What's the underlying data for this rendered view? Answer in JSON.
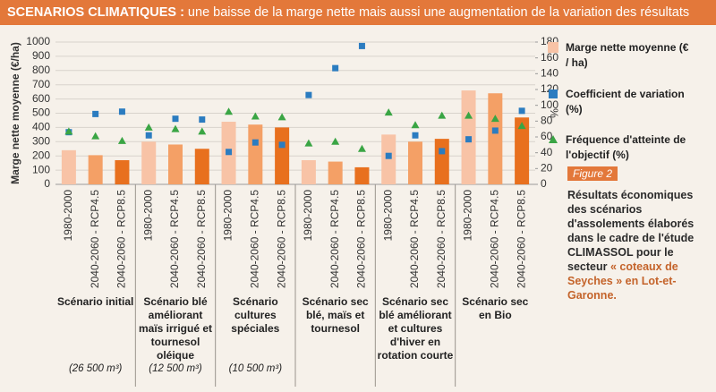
{
  "header": {
    "title_bold": "SCENARIOS CLIMATIQUES :",
    "title_rest": " une baisse de la marge nette mais aussi une augmentation de la variation des résultats"
  },
  "chart_data": {
    "type": "bar",
    "ylabel": "Marge nette moyenne (€/ha)",
    "y2label": "%",
    "categories": [
      "1980-2000",
      "2040-2060 - RCP4.5",
      "2040-2060 - RCP8.5",
      "1980-2000",
      "2040-2060 - RCP4.5",
      "2040-2060 - RCP8.5",
      "1980-2000",
      "2040-2060 - RCP4.5",
      "2040-2060 - RCP8.5",
      "1980-2000",
      "2040-2060 - RCP4.5",
      "2040-2060 - RCP8.5",
      "1980-2000",
      "2040-2060 - RCP4.5",
      "2040-2060 - RCP8.5",
      "1980-2000",
      "2040-2060 - RCP4.5",
      "2040-2060 - RCP8.5"
    ],
    "groups": [
      {
        "label": "Scénario initial",
        "note": "(26 500 m³)"
      },
      {
        "label": "Scénario blé améliorant maïs irrigué et tournesol oléique",
        "note": "(12 500 m³)"
      },
      {
        "label": "Scénario cultures spéciales",
        "note": "(10 500 m³)"
      },
      {
        "label": "Scénario sec blé, maïs et tournesol"
      },
      {
        "label": "Scénario sec blé améliorant et cultures d'hiver en rotation courte"
      },
      {
        "label": "Scénario sec en Bio"
      }
    ],
    "series": [
      {
        "name": "Marge nette moyenne (€ / ha)",
        "mark": "bar",
        "color": "#f8c3a6",
        "bar_colors": [
          "#f8c3a6",
          "#f4a066",
          "#e8701e"
        ],
        "values": [
          240,
          205,
          170,
          300,
          280,
          250,
          440,
          420,
          400,
          170,
          160,
          120,
          350,
          300,
          320,
          660,
          640,
          470
        ]
      },
      {
        "name": "Coefficient de variation (%)",
        "mark": "square",
        "color": "#2b7cc0",
        "axis": "y2",
        "values": [
          66,
          89,
          92,
          62,
          83,
          82,
          41,
          53,
          50,
          113,
          147,
          175,
          36,
          62,
          42,
          57,
          68,
          93
        ]
      },
      {
        "name": "Fréquence d'atteinte de l'objectif (%)",
        "mark": "triangle",
        "color": "#3aa544",
        "axis": "y2",
        "values": [
          67,
          61,
          55,
          72,
          70,
          67,
          92,
          86,
          85,
          52,
          54,
          45,
          91,
          75,
          87,
          87,
          83,
          74
        ]
      }
    ],
    "ylim": [
      0,
      1000
    ],
    "yticks": [
      0,
      100,
      200,
      300,
      400,
      500,
      600,
      700,
      800,
      900,
      1000
    ],
    "y2lim": [
      0,
      180
    ],
    "y2ticks": [
      0,
      20,
      40,
      60,
      80,
      100,
      120,
      140,
      160,
      180
    ],
    "grid": true
  },
  "sidebar": {
    "figure": "Figure 2",
    "text": "Résultats économiques des scénarios d'assolements élaborés dans le cadre de l'étude CLIMASSOL pour le secteur ",
    "highlight": "« coteaux de Seyches » en Lot-et-Garonne."
  }
}
